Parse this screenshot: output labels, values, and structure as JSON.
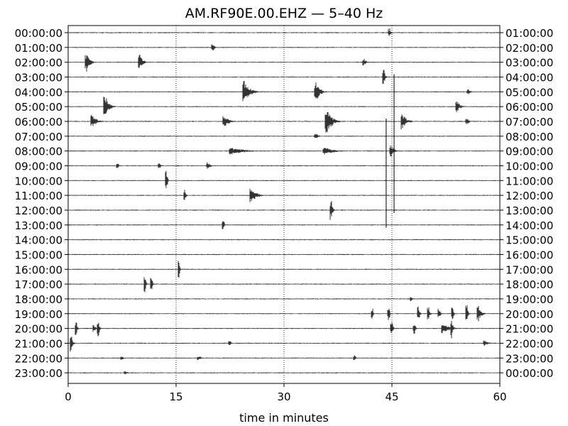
{
  "chart_data": {
    "type": "line",
    "title": "AM.RF90E.00.EHZ — 5–40 Hz",
    "xlabel": "time in minutes",
    "xlim": [
      0,
      60
    ],
    "x_ticks": [
      "0",
      "15",
      "30",
      "45",
      "60"
    ],
    "x_tick_values": [
      0,
      15,
      30,
      45,
      60
    ],
    "vertical_gridlines": [
      15,
      30,
      45
    ],
    "row_labels_left": [
      "00:00:00",
      "01:00:00",
      "02:00:00",
      "03:00:00",
      "04:00:00",
      "05:00:00",
      "06:00:00",
      "07:00:00",
      "08:00:00",
      "09:00:00",
      "10:00:00",
      "11:00:00",
      "12:00:00",
      "13:00:00",
      "14:00:00",
      "15:00:00",
      "16:00:00",
      "17:00:00",
      "18:00:00",
      "19:00:00",
      "20:00:00",
      "21:00:00",
      "22:00:00",
      "23:00:00"
    ],
    "row_labels_right": [
      "01:00:00",
      "02:00:00",
      "03:00:00",
      "04:00:00",
      "05:00:00",
      "06:00:00",
      "07:00:00",
      "08:00:00",
      "09:00:00",
      "10:00:00",
      "11:00:00",
      "12:00:00",
      "13:00:00",
      "14:00:00",
      "15:00:00",
      "16:00:00",
      "17:00:00",
      "18:00:00",
      "19:00:00",
      "20:00:00",
      "21:00:00",
      "22:00:00",
      "23:00:00",
      "00:00:00"
    ],
    "trace_color": "#000000",
    "events": [
      {
        "row": 0,
        "minute": 44.6,
        "amp": 6,
        "dur": 0.3
      },
      {
        "row": 1,
        "minute": 20.0,
        "amp": 5,
        "dur": 0.5
      },
      {
        "row": 2,
        "minute": 2.4,
        "amp": 14,
        "dur": 1.0
      },
      {
        "row": 2,
        "minute": 9.8,
        "amp": 12,
        "dur": 0.8
      },
      {
        "row": 2,
        "minute": 41.0,
        "amp": 5,
        "dur": 0.6
      },
      {
        "row": 3,
        "minute": 43.8,
        "amp": 10,
        "dur": 0.3
      },
      {
        "row": 4,
        "minute": 24.3,
        "amp": 16,
        "dur": 1.6
      },
      {
        "row": 4,
        "minute": 34.3,
        "amp": 14,
        "dur": 1.2
      },
      {
        "row": 4,
        "minute": 55.5,
        "amp": 4,
        "dur": 0.6
      },
      {
        "row": 5,
        "minute": 5.0,
        "amp": 18,
        "dur": 1.0
      },
      {
        "row": 5,
        "minute": 53.9,
        "amp": 9,
        "dur": 0.9
      },
      {
        "row": 6,
        "minute": 3.2,
        "amp": 10,
        "dur": 1.2
      },
      {
        "row": 6,
        "minute": 21.6,
        "amp": 8,
        "dur": 1.4
      },
      {
        "row": 6,
        "minute": 35.8,
        "amp": 20,
        "dur": 1.4
      },
      {
        "row": 6,
        "minute": 46.3,
        "amp": 12,
        "dur": 1.2
      },
      {
        "row": 6,
        "minute": 55.3,
        "amp": 5,
        "dur": 0.7
      },
      {
        "row": 7,
        "minute": 34.3,
        "amp": 4,
        "dur": 0.8
      },
      {
        "row": 8,
        "minute": 22.5,
        "amp": 5,
        "dur": 4.0
      },
      {
        "row": 8,
        "minute": 35.5,
        "amp": 5,
        "dur": 3.0
      },
      {
        "row": 8,
        "minute": 44.8,
        "amp": 8,
        "dur": 0.8
      },
      {
        "row": 9,
        "minute": 6.8,
        "amp": 5,
        "dur": 0.2
      },
      {
        "row": 9,
        "minute": 12.6,
        "amp": 5,
        "dur": 0.3
      },
      {
        "row": 9,
        "minute": 19.3,
        "amp": 5,
        "dur": 0.8
      },
      {
        "row": 10,
        "minute": 13.6,
        "amp": 14,
        "dur": 0.2
      },
      {
        "row": 11,
        "minute": 16.1,
        "amp": 8,
        "dur": 0.3
      },
      {
        "row": 11,
        "minute": 25.3,
        "amp": 10,
        "dur": 1.6
      },
      {
        "row": 12,
        "minute": 36.5,
        "amp": 14,
        "dur": 0.3
      },
      {
        "row": 13,
        "minute": 21.5,
        "amp": 8,
        "dur": 0.2
      },
      {
        "row": 16,
        "minute": 15.3,
        "amp": 12,
        "dur": 0.2
      },
      {
        "row": 17,
        "minute": 10.6,
        "amp": 12,
        "dur": 0.2
      },
      {
        "row": 17,
        "minute": 11.5,
        "amp": 12,
        "dur": 0.2
      },
      {
        "row": 18,
        "minute": 47.6,
        "amp": 3,
        "dur": 0.3
      },
      {
        "row": 19,
        "minute": 42.2,
        "amp": 7,
        "dur": 0.2
      },
      {
        "row": 19,
        "minute": 44.5,
        "amp": 9,
        "dur": 0.2
      },
      {
        "row": 19,
        "minute": 48.6,
        "amp": 11,
        "dur": 0.3
      },
      {
        "row": 19,
        "minute": 50.0,
        "amp": 9,
        "dur": 0.3
      },
      {
        "row": 19,
        "minute": 51.5,
        "amp": 7,
        "dur": 0.3
      },
      {
        "row": 19,
        "minute": 53.3,
        "amp": 9,
        "dur": 0.3
      },
      {
        "row": 19,
        "minute": 55.3,
        "amp": 13,
        "dur": 0.3
      },
      {
        "row": 19,
        "minute": 56.9,
        "amp": 11,
        "dur": 0.8
      },
      {
        "row": 20,
        "minute": 1.0,
        "amp": 10,
        "dur": 0.3
      },
      {
        "row": 20,
        "minute": 3.5,
        "amp": 6,
        "dur": 0.4
      },
      {
        "row": 20,
        "minute": 4.1,
        "amp": 12,
        "dur": 0.3
      },
      {
        "row": 20,
        "minute": 44.9,
        "amp": 9,
        "dur": 0.3
      },
      {
        "row": 20,
        "minute": 48.0,
        "amp": 9,
        "dur": 0.3
      },
      {
        "row": 20,
        "minute": 53.2,
        "amp": 14,
        "dur": 0.3
      },
      {
        "row": 20,
        "minute": 52.0,
        "amp": 7,
        "dur": 2.0
      },
      {
        "row": 21,
        "minute": 0.3,
        "amp": 12,
        "dur": 0.4
      },
      {
        "row": 21,
        "minute": 22.4,
        "amp": 4,
        "dur": 0.3
      },
      {
        "row": 21,
        "minute": 57.8,
        "amp": 4,
        "dur": 1.0
      },
      {
        "row": 22,
        "minute": 7.4,
        "amp": 3,
        "dur": 0.4
      },
      {
        "row": 22,
        "minute": 18.0,
        "amp": 3,
        "dur": 1.0
      },
      {
        "row": 22,
        "minute": 39.7,
        "amp": 4,
        "dur": 0.3
      },
      {
        "row": 23,
        "minute": 7.8,
        "amp": 3,
        "dur": 0.6
      }
    ],
    "long_spikes": [
      {
        "minute": 44.2,
        "from_row": 6,
        "to_row": 13
      },
      {
        "minute": 45.3,
        "from_row": 3,
        "to_row": 12
      }
    ]
  }
}
